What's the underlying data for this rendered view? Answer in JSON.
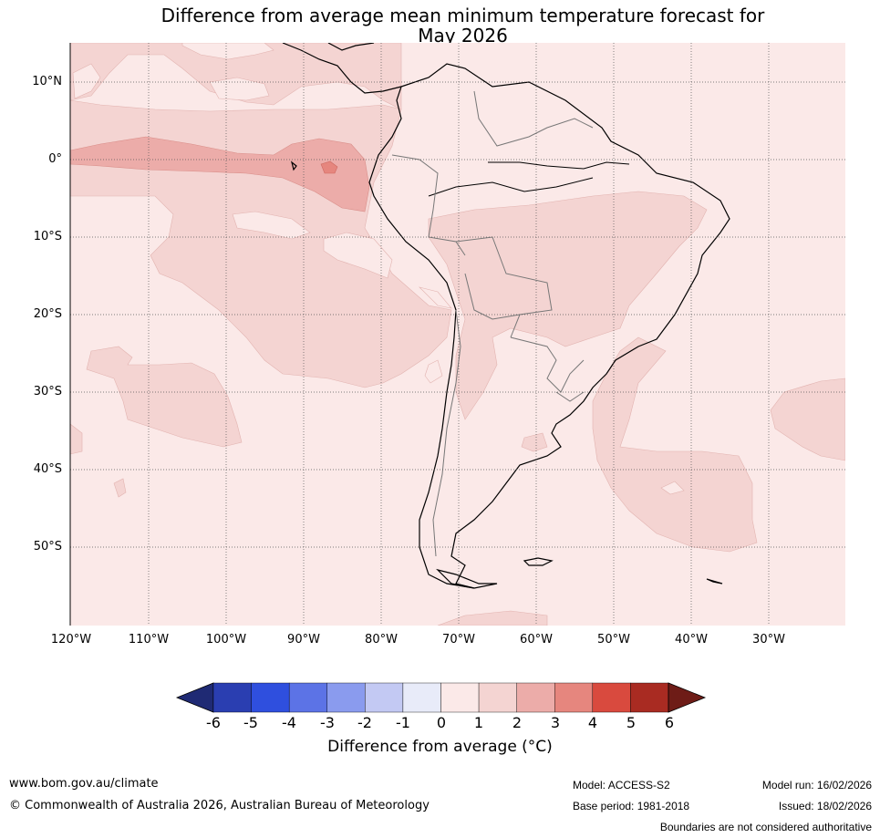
{
  "title": {
    "line1": "Difference from average mean minimum temperature forecast for",
    "line2": "May 2026"
  },
  "axes": {
    "lat_labels": [
      "10°N",
      "0°",
      "10°S",
      "20°S",
      "30°S",
      "40°S",
      "50°S"
    ],
    "lon_labels": [
      "120°W",
      "110°W",
      "100°W",
      "90°W",
      "80°W",
      "70°W",
      "60°W",
      "50°W",
      "40°W",
      "30°W"
    ]
  },
  "colorbar": {
    "ticks": [
      "-6",
      "-5",
      "-4",
      "-3",
      "-2",
      "-1",
      "0",
      "1",
      "2",
      "3",
      "4",
      "5",
      "6"
    ],
    "colors": [
      "#1f2a74",
      "#2a3eb1",
      "#2f4fde",
      "#5c73e6",
      "#8a9bee",
      "#c3c9f3",
      "#e8ebf9",
      "#fbe9e8",
      "#f4d4d2",
      "#ecaca9",
      "#e6867e",
      "#d94a3e",
      "#a92b22",
      "#6e1c17"
    ],
    "title": "Difference from average (°C)"
  },
  "footer": {
    "url": "www.bom.gov.au/climate",
    "copyright": "© Commonwealth of Australia 2026, Australian Bureau of Meteorology",
    "model": "Model: ACCESS-S2",
    "base_period": "Base period: 1981-2018",
    "model_run": "Model run: 16/02/2026",
    "issued": "Issued: 18/02/2026",
    "disclaimer": "Boundaries are not considered authoritative"
  }
}
